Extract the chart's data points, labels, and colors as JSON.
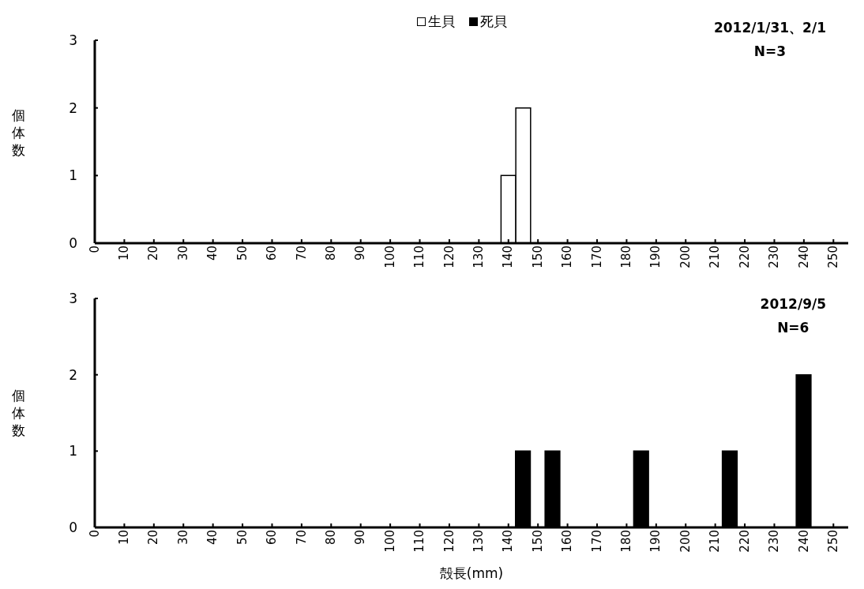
{
  "chart_data": [
    {
      "type": "bar",
      "title": "2012/1/31、2/1",
      "subtitle": "N=3",
      "ylabel": "個体数",
      "x": [
        140,
        145
      ],
      "series": [
        {
          "name": "生貝",
          "color": "#ffffff",
          "values": [
            1,
            2
          ]
        },
        {
          "name": "死貝",
          "color": "#000000",
          "values": [
            null,
            null
          ]
        }
      ],
      "xlim": [
        0,
        255
      ],
      "xticks": [
        0,
        10,
        20,
        30,
        40,
        50,
        60,
        70,
        80,
        90,
        100,
        110,
        120,
        130,
        140,
        150,
        160,
        170,
        180,
        190,
        200,
        210,
        220,
        230,
        240,
        250
      ],
      "ylim": [
        0,
        3
      ],
      "yticks": [
        0,
        1,
        2,
        3
      ],
      "grid": false,
      "legend": "top"
    },
    {
      "type": "bar",
      "title": "2012/9/5",
      "subtitle": "N=6",
      "xlabel": "殻長(mm)",
      "ylabel": "個体数",
      "x": [
        145,
        155,
        185,
        215,
        240
      ],
      "series": [
        {
          "color": "#000000",
          "values": [
            1,
            1,
            1,
            1,
            2
          ]
        }
      ],
      "xlim": [
        0,
        255
      ],
      "xticks": [
        0,
        10,
        20,
        30,
        40,
        50,
        60,
        70,
        80,
        90,
        100,
        110,
        120,
        130,
        140,
        150,
        160,
        170,
        180,
        190,
        200,
        210,
        220,
        230,
        240,
        250
      ],
      "ylim": [
        0,
        3
      ],
      "yticks": [
        0,
        1,
        2,
        3
      ],
      "grid": false,
      "legend": false
    }
  ]
}
